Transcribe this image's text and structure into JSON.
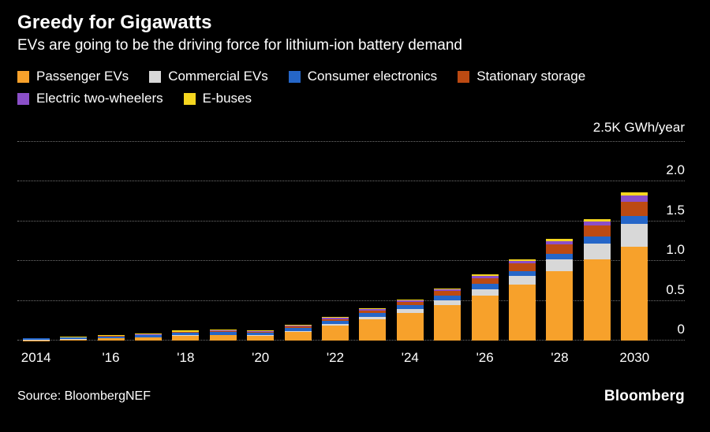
{
  "chart_data": {
    "type": "bar",
    "stacked": true,
    "title": "Greedy for Gigawatts",
    "subtitle": "EVs are going to be the driving force for lithium-ion battery demand",
    "unit_label": "2.5K GWh/year",
    "ylabel": "GWh/year (thousands)",
    "ylim": [
      0,
      2.5
    ],
    "grid": "dotted-horizontal",
    "legend_position": "top",
    "y_ticks": [
      0,
      0.5,
      1.0,
      1.5,
      2.0,
      2.5
    ],
    "y_tick_labels": [
      "0",
      "0.5",
      "1.0",
      "1.5",
      "2.0",
      ""
    ],
    "categories": [
      2014,
      2015,
      2016,
      2017,
      2018,
      2019,
      2020,
      2021,
      2022,
      2023,
      2024,
      2025,
      2026,
      2027,
      2028,
      2029,
      2030
    ],
    "x_tick_labels": [
      "2014",
      "'16",
      "'18",
      "'20",
      "'22",
      "'24",
      "'26",
      "'28",
      "2030"
    ],
    "x_tick_indices": [
      0,
      2,
      4,
      6,
      8,
      10,
      12,
      14,
      16
    ],
    "series": [
      {
        "name": "Passenger EVs",
        "color": "#F7A12B",
        "values": [
          0.005,
          0.015,
          0.025,
          0.035,
          0.06,
          0.065,
          0.058,
          0.11,
          0.185,
          0.265,
          0.345,
          0.445,
          0.565,
          0.7,
          0.87,
          1.02,
          1.18
        ]
      },
      {
        "name": "Commercial EVs",
        "color": "#D8D8D8",
        "values": [
          0.001,
          0.002,
          0.003,
          0.004,
          0.006,
          0.008,
          0.008,
          0.012,
          0.02,
          0.032,
          0.048,
          0.065,
          0.085,
          0.11,
          0.15,
          0.2,
          0.29
        ]
      },
      {
        "name": "Consumer electronics",
        "color": "#2566C8",
        "values": [
          0.02,
          0.022,
          0.025,
          0.028,
          0.032,
          0.035,
          0.038,
          0.042,
          0.046,
          0.05,
          0.054,
          0.058,
          0.062,
          0.068,
          0.075,
          0.085,
          0.095
        ]
      },
      {
        "name": "Stationary storage",
        "color": "#BC4A12",
        "values": [
          0.001,
          0.002,
          0.003,
          0.005,
          0.008,
          0.01,
          0.01,
          0.015,
          0.022,
          0.032,
          0.042,
          0.055,
          0.072,
          0.09,
          0.12,
          0.145,
          0.185
        ]
      },
      {
        "name": "Electric two-wheelers",
        "color": "#8B4FC8",
        "values": [
          0.002,
          0.004,
          0.004,
          0.005,
          0.008,
          0.008,
          0.008,
          0.011,
          0.015,
          0.018,
          0.018,
          0.022,
          0.028,
          0.032,
          0.04,
          0.05,
          0.075
        ]
      },
      {
        "name": "E-buses",
        "color": "#F5D61F",
        "values": [
          0.001,
          0.005,
          0.01,
          0.013,
          0.016,
          0.014,
          0.008,
          0.01,
          0.012,
          0.013,
          0.013,
          0.015,
          0.018,
          0.02,
          0.025,
          0.03,
          0.045
        ]
      }
    ]
  },
  "footer": {
    "source": "Source: BloombergNEF",
    "brand": "Bloomberg"
  }
}
